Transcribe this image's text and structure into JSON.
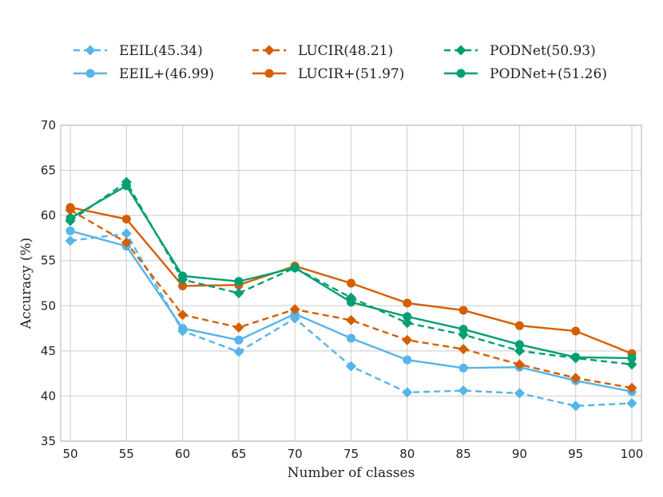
{
  "chart_data": {
    "type": "line",
    "title": "",
    "xlabel": "Number of classes",
    "ylabel": "Accuracy (%)",
    "x": [
      50,
      55,
      60,
      65,
      70,
      75,
      80,
      85,
      90,
      95,
      100
    ],
    "xlim": [
      50,
      100
    ],
    "ylim": [
      35,
      70
    ],
    "xticks": [
      50,
      55,
      60,
      65,
      70,
      75,
      80,
      85,
      90,
      95,
      100
    ],
    "yticks": [
      35,
      40,
      45,
      50,
      55,
      60,
      65,
      70
    ],
    "grid": true,
    "legend_position": "top",
    "series": [
      {
        "name": "EEIL(45.34)",
        "color": "#56B4E9",
        "dash": true,
        "marker": "diamond",
        "values": [
          57.2,
          58.0,
          47.2,
          44.9,
          48.6,
          43.3,
          40.4,
          40.6,
          40.3,
          38.9,
          39.2
        ]
      },
      {
        "name": "EEIL+(46.99)",
        "color": "#56B4E9",
        "dash": false,
        "marker": "circle",
        "values": [
          58.3,
          56.6,
          47.5,
          46.2,
          49.1,
          46.4,
          44.0,
          43.1,
          43.2,
          41.7,
          40.5
        ]
      },
      {
        "name": "LUCIR(48.21)",
        "color": "#D55E00",
        "dash": true,
        "marker": "diamond",
        "values": [
          60.6,
          57.0,
          49.0,
          47.6,
          49.6,
          48.4,
          46.2,
          45.2,
          43.5,
          42.0,
          40.9
        ]
      },
      {
        "name": "LUCIR+(51.97)",
        "color": "#D55E00",
        "dash": false,
        "marker": "circle",
        "values": [
          60.9,
          59.6,
          52.2,
          52.3,
          54.4,
          52.5,
          50.3,
          49.5,
          47.8,
          47.2,
          44.7
        ]
      },
      {
        "name": "PODNet(50.93)",
        "color": "#009E73",
        "dash": true,
        "marker": "diamond",
        "values": [
          59.4,
          63.7,
          52.9,
          51.4,
          54.2,
          50.9,
          48.1,
          46.8,
          45.0,
          44.2,
          43.5
        ]
      },
      {
        "name": "PODNet+(51.26)",
        "color": "#009E73",
        "dash": false,
        "marker": "circle",
        "values": [
          59.7,
          63.3,
          53.3,
          52.7,
          54.2,
          50.4,
          48.8,
          47.4,
          45.7,
          44.3,
          44.2
        ]
      }
    ],
    "legend_order": [
      0,
      2,
      4,
      1,
      3,
      5
    ]
  }
}
